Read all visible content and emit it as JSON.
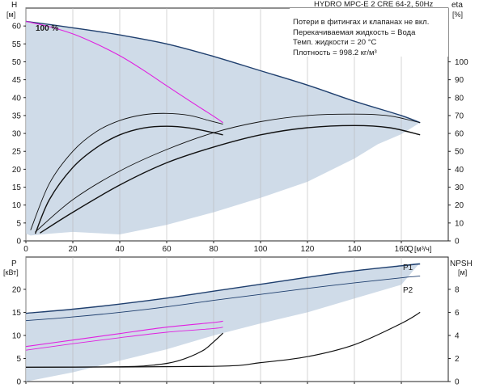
{
  "header": {
    "title": "HYDRO MPC-E 2 CRE 64-2, 50Hz",
    "info_lines": [
      "Потери в фитингах и клапанах не вкл.",
      "Перекачиваемая жидкость = Вода",
      "Темп. жидкости = 20 °C",
      "Плотность = 998.2 кг/м³"
    ]
  },
  "colors": {
    "area": "#cfdbe8",
    "curve": "#1f3f6e",
    "black": "#111111",
    "magenta": "#e020e0",
    "grid": "#b8b8b8"
  },
  "chart_data": [
    {
      "type": "line",
      "panel": "head",
      "x_axis": {
        "label": "Q",
        "unit": "[м³/ч]",
        "range": [
          0,
          180
        ],
        "ticks": [
          0,
          20,
          40,
          60,
          80,
          100,
          120,
          140,
          160
        ]
      },
      "y_axis": {
        "label": "H",
        "unit": "[м]",
        "range": [
          0,
          65
        ],
        "ticks": [
          0,
          5,
          10,
          15,
          20,
          25,
          30,
          35,
          40,
          45,
          50,
          55,
          60
        ]
      },
      "y2_axis": {
        "label": "eta",
        "unit": "[%]",
        "range": [
          0,
          130
        ],
        "ticks": [
          0,
          10,
          20,
          30,
          40,
          50,
          60,
          70,
          80,
          90,
          100
        ]
      },
      "speed_label": "100 %",
      "operating_area": [
        [
          0,
          61.3
        ],
        [
          20,
          59.5
        ],
        [
          40,
          57.5
        ],
        [
          60,
          55
        ],
        [
          80,
          51.5
        ],
        [
          100,
          47.5
        ],
        [
          120,
          43.5
        ],
        [
          140,
          39
        ],
        [
          160,
          35
        ],
        [
          168,
          33
        ],
        [
          160,
          29.8
        ],
        [
          150,
          27
        ],
        [
          140,
          23
        ],
        [
          120,
          16.5
        ],
        [
          100,
          12
        ],
        [
          80,
          8
        ],
        [
          60,
          4.5
        ],
        [
          40,
          1.8
        ],
        [
          20,
          2.5
        ],
        [
          10,
          2
        ],
        [
          2,
          1.5
        ],
        [
          0,
          2
        ]
      ],
      "series": [
        {
          "name": "",
          "role": "head",
          "color": "#1f3f6e",
          "width": 1.4,
          "points": [
            [
              0,
              61.3
            ],
            [
              20,
              59.5
            ],
            [
              40,
              57.5
            ],
            [
              60,
              55
            ],
            [
              80,
              51.5
            ],
            [
              100,
              47.5
            ],
            [
              120,
              43.5
            ],
            [
              140,
              39
            ],
            [
              160,
              35
            ],
            [
              168,
              33
            ]
          ]
        },
        {
          "name": "",
          "role": "head_single",
          "color": "#e020e0",
          "width": 1.1,
          "points": [
            [
              0,
              61.3
            ],
            [
              10,
              59.8
            ],
            [
              20,
              57.8
            ],
            [
              30,
              55
            ],
            [
              40,
              51.7
            ],
            [
              50,
              47.7
            ],
            [
              60,
              43.3
            ],
            [
              70,
              39
            ],
            [
              80,
              34.8
            ],
            [
              84,
              33
            ]
          ]
        },
        {
          "name": "",
          "role": "eta_single",
          "color": "#111111",
          "width": 0.9,
          "points": [
            [
              2,
              3
            ],
            [
              10,
              16
            ],
            [
              20,
              25
            ],
            [
              30,
              30.5
            ],
            [
              40,
              33.6
            ],
            [
              50,
              35.2
            ],
            [
              60,
              35.6
            ],
            [
              70,
              35
            ],
            [
              78,
              33.6
            ],
            [
              84,
              32.6
            ]
          ]
        },
        {
          "name": "",
          "role": "eta_single",
          "color": "#111111",
          "width": 1.4,
          "points": [
            [
              4,
              2
            ],
            [
              10,
              11.5
            ],
            [
              20,
              20.5
            ],
            [
              30,
              26
            ],
            [
              40,
              29.6
            ],
            [
              50,
              31.5
            ],
            [
              60,
              32
            ],
            [
              70,
              31.5
            ],
            [
              80,
              30.2
            ],
            [
              84,
              29.6
            ]
          ]
        },
        {
          "name": "",
          "role": "eta_total",
          "color": "#111111",
          "width": 0.9,
          "points": [
            [
              4,
              2.5
            ],
            [
              20,
              11.5
            ],
            [
              40,
              19.5
            ],
            [
              60,
              25.5
            ],
            [
              80,
              30.2
            ],
            [
              100,
              33.3
            ],
            [
              120,
              35
            ],
            [
              140,
              35.4
            ],
            [
              155,
              34.9
            ],
            [
              168,
              33
            ]
          ]
        },
        {
          "name": "",
          "role": "eta_total",
          "color": "#111111",
          "width": 1.4,
          "points": [
            [
              6,
              2.2
            ],
            [
              20,
              8
            ],
            [
              40,
              15.6
            ],
            [
              60,
              21.8
            ],
            [
              80,
              26.2
            ],
            [
              100,
              29.6
            ],
            [
              120,
              31.6
            ],
            [
              140,
              32.2
            ],
            [
              155,
              31.6
            ],
            [
              168,
              29.6
            ]
          ]
        }
      ]
    },
    {
      "type": "line",
      "panel": "power",
      "x_axis": {
        "range": [
          0,
          180
        ],
        "ticks": [
          0,
          20,
          40,
          60,
          80,
          100,
          120,
          140,
          160
        ]
      },
      "y_axis": {
        "label": "P",
        "unit": "[кВт]",
        "range": [
          0,
          27
        ],
        "ticks": [
          0,
          5,
          10,
          15,
          20
        ]
      },
      "y2_axis": {
        "label": "NPSH",
        "unit": "[м]",
        "range": [
          0,
          10.8
        ],
        "ticks": [
          0,
          2,
          4,
          6,
          8
        ]
      },
      "operating_area": [
        [
          0,
          14.6
        ],
        [
          40,
          16.8
        ],
        [
          80,
          19.6
        ],
        [
          120,
          22.8
        ],
        [
          168,
          25.8
        ],
        [
          160,
          21
        ],
        [
          140,
          18
        ],
        [
          120,
          15
        ],
        [
          100,
          12.6
        ],
        [
          80,
          10
        ],
        [
          60,
          7
        ],
        [
          40,
          4.5
        ],
        [
          20,
          2
        ],
        [
          0,
          0
        ]
      ],
      "series": [
        {
          "name": "P1",
          "role": "power",
          "color": "#1f3f6e",
          "width": 1.4,
          "points": [
            [
              0,
              14.8
            ],
            [
              20,
              15.7
            ],
            [
              40,
              16.8
            ],
            [
              60,
              18.1
            ],
            [
              80,
              19.6
            ],
            [
              100,
              21.1
            ],
            [
              120,
              22.6
            ],
            [
              140,
              24
            ],
            [
              160,
              25.1
            ],
            [
              168,
              25.5
            ]
          ]
        },
        {
          "name": "P2",
          "role": "power",
          "color": "#1f3f6e",
          "width": 0.9,
          "points": [
            [
              0,
              13.2
            ],
            [
              20,
              14
            ],
            [
              40,
              15
            ],
            [
              60,
              16.2
            ],
            [
              80,
              17.6
            ],
            [
              100,
              18.9
            ],
            [
              120,
              20.2
            ],
            [
              140,
              21.4
            ],
            [
              160,
              22.5
            ],
            [
              168,
              22.9
            ]
          ]
        },
        {
          "name": "",
          "role": "power_single",
          "color": "#e020e0",
          "width": 1.1,
          "points": [
            [
              0,
              7.6
            ],
            [
              20,
              9
            ],
            [
              40,
              10.4
            ],
            [
              60,
              11.8
            ],
            [
              80,
              12.8
            ],
            [
              84,
              13.1
            ]
          ]
        },
        {
          "name": "",
          "role": "power_single",
          "color": "#e020e0",
          "width": 0.9,
          "points": [
            [
              0,
              6.8
            ],
            [
              20,
              8.2
            ],
            [
              40,
              9.5
            ],
            [
              60,
              10.7
            ],
            [
              80,
              11.5
            ],
            [
              84,
              11.8
            ]
          ]
        },
        {
          "name": "",
          "role": "npsh_single",
          "color": "#111111",
          "width": 1.2,
          "points": [
            [
              0,
              3.1
            ],
            [
              40,
              3.2
            ],
            [
              55,
              3.6
            ],
            [
              65,
              4.5
            ],
            [
              75,
              6.6
            ],
            [
              80,
              8.6
            ],
            [
              84,
              10.5
            ]
          ]
        },
        {
          "name": "",
          "role": "npsh_total",
          "color": "#111111",
          "width": 1.2,
          "points": [
            [
              0,
              3.1
            ],
            [
              80,
              3.3
            ],
            [
              100,
              4.1
            ],
            [
              120,
              5.4
            ],
            [
              140,
              8
            ],
            [
              160,
              12.6
            ],
            [
              168,
              15
            ]
          ]
        }
      ]
    }
  ]
}
